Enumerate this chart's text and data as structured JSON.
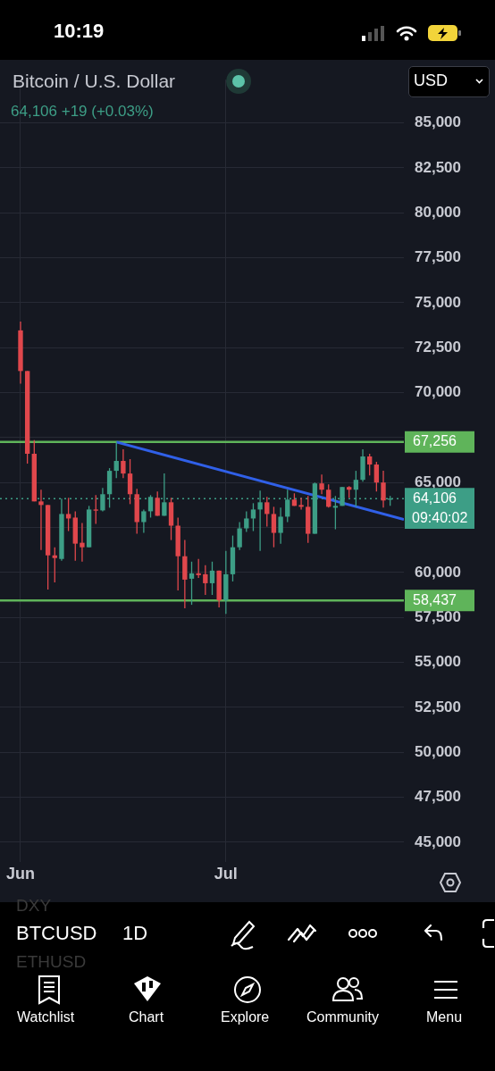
{
  "chart_data": {
    "type": "candlestick",
    "title": "Bitcoin / U.S. Dollar",
    "subtitle": "64,106 +19 (+0.03%)",
    "x": [
      "--06-01",
      "--06-02",
      "--06-03",
      "--06-04",
      "--06-05",
      "--06-06",
      "--06-07",
      "--06-08",
      "--06-09",
      "--06-10",
      "--06-11",
      "--06-12",
      "--06-13",
      "--06-14",
      "--06-15",
      "--06-16",
      "--06-17",
      "--06-18",
      "--06-19",
      "--06-20",
      "--06-21",
      "--06-22",
      "--06-23",
      "--06-24",
      "--06-25",
      "--06-26",
      "--06-27",
      "--06-28",
      "--06-29",
      "--06-30",
      "--07-01",
      "--07-02",
      "--07-03",
      "--07-04",
      "--07-05",
      "--07-06",
      "--07-07",
      "--07-08",
      "--07-09",
      "--07-10",
      "--07-11",
      "--07-12",
      "--07-13",
      "--07-14",
      "--07-15",
      "--07-16",
      "--07-17",
      "--07-18",
      "--07-19",
      "--07-20",
      "--07-21",
      "--07-22",
      "--07-23",
      "--07-24",
      "--07-25"
    ],
    "ohlc": [
      [
        73460,
        73950,
        70500,
        71200
      ],
      [
        71200,
        71200,
        66050,
        66600
      ],
      [
        66600,
        67350,
        63950,
        63950
      ],
      [
        63950,
        64600,
        61250,
        63750
      ],
      [
        63750,
        63750,
        59050,
        60950
      ],
      [
        60950,
        61400,
        59450,
        60800
      ],
      [
        60750,
        64100,
        60650,
        63250
      ],
      [
        63250,
        64150,
        62300,
        63000
      ],
      [
        63050,
        63400,
        60650,
        61600
      ],
      [
        61650,
        62750,
        60600,
        61400
      ],
      [
        61400,
        63700,
        61400,
        63500
      ],
      [
        63500,
        64300,
        62700,
        63450
      ],
      [
        63450,
        64700,
        63400,
        64350
      ],
      [
        64350,
        65800,
        63600,
        65650
      ],
      [
        65650,
        67256,
        65250,
        66200
      ],
      [
        66200,
        66850,
        65250,
        65500
      ],
      [
        65500,
        66300,
        63800,
        64350
      ],
      [
        64350,
        64650,
        62150,
        62800
      ],
      [
        62800,
        63500,
        62200,
        63400
      ],
      [
        63400,
        64300,
        63050,
        64200
      ],
      [
        64150,
        64500,
        63150,
        63150
      ],
      [
        63150,
        65500,
        63150,
        63900
      ],
      [
        63900,
        64150,
        61800,
        62600
      ],
      [
        62600,
        63050,
        59000,
        60900
      ],
      [
        60900,
        61800,
        58000,
        59600
      ],
      [
        59650,
        60600,
        58200,
        59950
      ],
      [
        59950,
        60750,
        59700,
        59850
      ],
      [
        59900,
        60400,
        58750,
        59400
      ],
      [
        59400,
        60600,
        58750,
        60100
      ],
      [
        60100,
        60100,
        58050,
        58450
      ],
      [
        58450,
        61200,
        57700,
        59900
      ],
      [
        59900,
        62050,
        59500,
        61400
      ],
      [
        61400,
        62800,
        61250,
        62450
      ],
      [
        62450,
        63400,
        62250,
        63000
      ],
      [
        63000,
        63850,
        62300,
        63500
      ],
      [
        63500,
        64550,
        61200,
        63900
      ],
      [
        63900,
        64200,
        62550,
        63250
      ],
      [
        63250,
        63650,
        61400,
        62200
      ],
      [
        62200,
        63600,
        61600,
        63100
      ],
      [
        63100,
        64600,
        62800,
        64050
      ],
      [
        64050,
        64400,
        63700,
        63700
      ],
      [
        63750,
        64150,
        63500,
        63650
      ],
      [
        63650,
        64250,
        61650,
        62150
      ],
      [
        62150,
        65000,
        62150,
        64950
      ],
      [
        64950,
        65450,
        64350,
        64600
      ],
      [
        64600,
        64900,
        63600,
        63650
      ],
      [
        63600,
        64250,
        62400,
        63700
      ],
      [
        63700,
        64750,
        63700,
        64750
      ],
      [
        64750,
        64800,
        64150,
        64600
      ],
      [
        64600,
        65650,
        63650,
        65150
      ],
      [
        65150,
        66850,
        65050,
        66450
      ],
      [
        66450,
        66600,
        65400,
        66000
      ],
      [
        66000,
        66150,
        64500,
        65000
      ],
      [
        65000,
        65650,
        63600,
        64000
      ],
      [
        64087,
        64250,
        63700,
        64106
      ]
    ],
    "series": [
      {
        "type": "line",
        "x": [
          "--06-15",
          "--07-27"
        ],
        "values": [
          67250,
          62950
        ],
        "color": "#3060e8"
      }
    ],
    "ref_lines": [
      {
        "axis": "y",
        "value": 67256,
        "label": "67,256",
        "color": "#5fb45a"
      },
      {
        "axis": "y",
        "value": 58437,
        "label": "58,437",
        "color": "#5fb45a"
      },
      {
        "axis": "y",
        "value": 64106,
        "label": "64,106",
        "color": "#3d9e86",
        "line_style": "dotted"
      }
    ],
    "xlim": [
      "--05-29",
      "--07-27"
    ],
    "xticks": [
      {
        "value": "--06-01",
        "label": "Jun"
      },
      {
        "value": "--07-01",
        "label": "Jul"
      }
    ],
    "ylim": [
      43900,
      87400
    ],
    "yticks": [
      {
        "value": 45000,
        "label": "45,000"
      },
      {
        "value": 47500,
        "label": "47,500"
      },
      {
        "value": 50000,
        "label": "50,000"
      },
      {
        "value": 52500,
        "label": "52,500"
      },
      {
        "value": 55000,
        "label": "55,000"
      },
      {
        "value": 57500,
        "label": "57,500"
      },
      {
        "value": 60000,
        "label": "60,000"
      },
      {
        "value": 62500,
        "label": null
      },
      {
        "value": 65000,
        "label": "65,000"
      },
      {
        "value": 67500,
        "label": null
      },
      {
        "value": 70000,
        "label": "70,000"
      },
      {
        "value": 72500,
        "label": "72,500"
      },
      {
        "value": 75000,
        "label": "75,000"
      },
      {
        "value": 77500,
        "label": "77,500"
      },
      {
        "value": 80000,
        "label": "80,000"
      },
      {
        "value": 82500,
        "label": "82,500"
      },
      {
        "value": 85000,
        "label": "85,000"
      }
    ],
    "grid": true,
    "legend": false,
    "annotations": [
      "10:19",
      "USD",
      "09:40:02",
      "DXY",
      "BTCUSD",
      "1D",
      "ETHUSD",
      "Watchlist",
      "Chart",
      "Explore",
      "Community",
      "Menu"
    ]
  }
}
